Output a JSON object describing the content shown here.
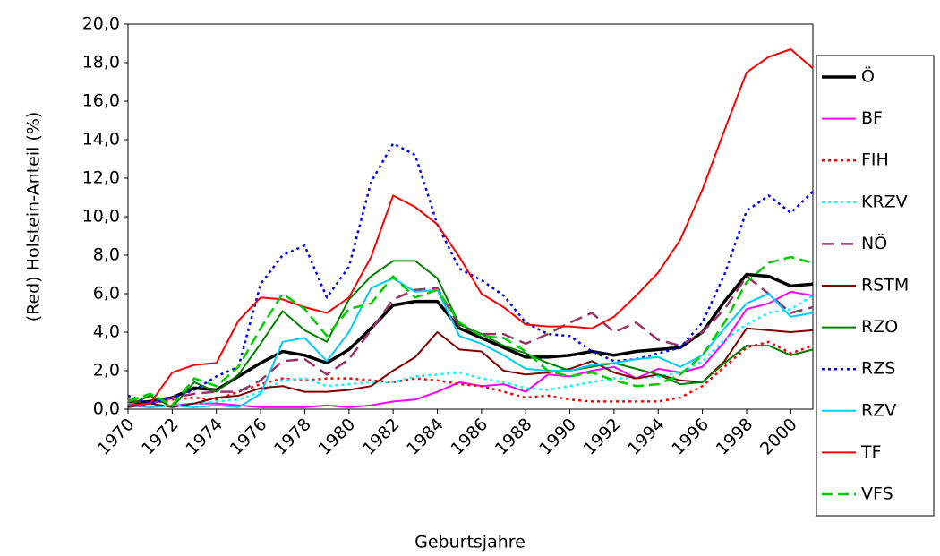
{
  "chart_data": {
    "type": "line",
    "y_label": "(Red) Holstein-Anteil (%)",
    "x_label": "Geburtsjahre",
    "x": [
      1970,
      1971,
      1972,
      1973,
      1974,
      1975,
      1976,
      1977,
      1978,
      1979,
      1980,
      1981,
      1982,
      1983,
      1984,
      1985,
      1986,
      1987,
      1988,
      1989,
      1990,
      1991,
      1992,
      1993,
      1994,
      1995,
      1996,
      1997,
      1998,
      1999,
      2000,
      2001
    ],
    "xlim": [
      1970,
      2001
    ],
    "xticks": [
      1970,
      1972,
      1974,
      1976,
      1978,
      1980,
      1982,
      1984,
      1986,
      1988,
      1990,
      1992,
      1994,
      1996,
      1998,
      2000
    ],
    "ylim": [
      0,
      20
    ],
    "yticks": [
      {
        "value": 0,
        "label": "0,0"
      },
      {
        "value": 2,
        "label": "2,0"
      },
      {
        "value": 4,
        "label": "4,0"
      },
      {
        "value": 6,
        "label": "6,0"
      },
      {
        "value": 8,
        "label": "8,0"
      },
      {
        "value": 10,
        "label": "10,0"
      },
      {
        "value": 12,
        "label": "12,0"
      },
      {
        "value": 14,
        "label": "14,0"
      },
      {
        "value": 16,
        "label": "16,0"
      },
      {
        "value": 18,
        "label": "18,0"
      },
      {
        "value": 20,
        "label": "20,0"
      }
    ],
    "legend": "right",
    "series": [
      {
        "name": "Ö",
        "color": "#000000",
        "style": "thick",
        "values": [
          0.3,
          0.4,
          0.6,
          1.1,
          1.0,
          1.7,
          2.4,
          3.0,
          2.8,
          2.4,
          3.1,
          4.2,
          5.4,
          5.6,
          5.6,
          4.2,
          3.7,
          3.2,
          2.7,
          2.7,
          2.8,
          3.0,
          2.8,
          3.0,
          3.1,
          3.2,
          4.0,
          5.6,
          7.0,
          6.9,
          6.4,
          6.5
        ]
      },
      {
        "name": "BF",
        "color": "#ff00ff",
        "style": "solid",
        "values": [
          0.2,
          0.1,
          0.2,
          0.3,
          0.3,
          0.2,
          0.1,
          0.1,
          0.1,
          0.2,
          0.1,
          0.2,
          0.4,
          0.5,
          0.9,
          1.4,
          1.2,
          1.3,
          0.9,
          1.8,
          1.7,
          2.0,
          2.2,
          1.6,
          2.1,
          1.9,
          2.2,
          3.5,
          5.2,
          5.5,
          6.1,
          5.9
        ]
      },
      {
        "name": "FIH",
        "color": "#ff0000",
        "style": "dotted",
        "values": [
          0.2,
          0.3,
          0.5,
          0.6,
          0.5,
          0.9,
          1.3,
          1.6,
          1.5,
          1.6,
          1.6,
          1.5,
          1.4,
          1.6,
          1.5,
          1.3,
          1.2,
          0.9,
          0.6,
          0.7,
          0.5,
          0.4,
          0.4,
          0.4,
          0.4,
          0.6,
          1.2,
          2.2,
          3.2,
          3.5,
          2.9,
          3.3
        ]
      },
      {
        "name": "KRZV",
        "color": "#00ffff",
        "style": "dotted",
        "values": [
          0.2,
          0.1,
          0.2,
          0.3,
          0.4,
          0.5,
          0.9,
          1.5,
          1.6,
          1.2,
          1.3,
          1.4,
          1.4,
          1.7,
          1.8,
          1.9,
          1.6,
          1.4,
          1.1,
          1.0,
          1.2,
          1.4,
          1.6,
          1.6,
          1.7,
          1.9,
          2.5,
          3.6,
          4.4,
          5.0,
          5.2,
          5.9
        ]
      },
      {
        "name": "NÖ",
        "color": "#993366",
        "style": "longdash",
        "values": [
          0.5,
          0.3,
          0.6,
          0.8,
          0.9,
          0.9,
          1.5,
          2.5,
          2.6,
          1.8,
          2.6,
          4.1,
          5.7,
          6.2,
          6.3,
          4.3,
          3.9,
          3.9,
          3.4,
          3.9,
          4.5,
          5.0,
          4.0,
          4.5,
          3.6,
          3.3,
          4.0,
          5.2,
          6.9,
          6.0,
          5.0,
          5.3
        ]
      },
      {
        "name": "RSTM",
        "color": "#800000",
        "style": "solid",
        "values": [
          0.1,
          0.3,
          0.1,
          0.3,
          0.6,
          0.7,
          1.1,
          1.2,
          0.9,
          0.9,
          1.0,
          1.2,
          2.0,
          2.7,
          4.0,
          3.1,
          3.0,
          2.0,
          1.8,
          1.9,
          2.1,
          2.5,
          1.9,
          1.6,
          1.8,
          1.5,
          1.4,
          2.5,
          4.2,
          4.1,
          4.0,
          4.1
        ]
      },
      {
        "name": "RZO",
        "color": "#008000",
        "style": "solid",
        "values": [
          0.2,
          0.7,
          0.1,
          1.4,
          0.9,
          1.8,
          3.4,
          5.1,
          4.1,
          3.5,
          5.7,
          6.9,
          7.7,
          7.7,
          6.8,
          4.4,
          3.9,
          3.3,
          2.9,
          2.4,
          2.0,
          2.2,
          2.4,
          2.1,
          1.8,
          1.3,
          1.4,
          2.4,
          3.3,
          3.3,
          2.8,
          3.1
        ]
      },
      {
        "name": "RZS",
        "color": "#0000ff",
        "style": "dotted",
        "values": [
          0.7,
          0.3,
          0.6,
          1.0,
          1.7,
          2.2,
          6.5,
          8.0,
          8.5,
          5.8,
          7.4,
          11.8,
          13.8,
          13.2,
          9.6,
          7.3,
          6.7,
          5.9,
          4.5,
          3.9,
          3.8,
          3.0,
          2.5,
          2.6,
          2.9,
          3.2,
          4.5,
          7.0,
          10.3,
          11.1,
          10.2,
          11.3
        ]
      },
      {
        "name": "RZV",
        "color": "#00ccff",
        "style": "solid",
        "values": [
          0.3,
          0.1,
          0.2,
          0.1,
          0.2,
          0.1,
          0.8,
          3.5,
          3.7,
          2.5,
          4.0,
          6.3,
          6.8,
          6.1,
          6.2,
          3.8,
          3.4,
          2.8,
          2.1,
          2.0,
          2.0,
          2.3,
          2.4,
          2.6,
          2.7,
          2.2,
          2.8,
          4.2,
          5.5,
          6.0,
          4.8,
          5.0
        ]
      },
      {
        "name": "TF",
        "color": "#ff0000",
        "style": "solid",
        "values": [
          0.2,
          0.3,
          1.9,
          2.3,
          2.4,
          4.6,
          5.8,
          5.7,
          5.3,
          5.0,
          5.8,
          7.9,
          11.1,
          10.5,
          9.6,
          7.9,
          6.0,
          5.3,
          4.4,
          4.3,
          4.3,
          4.2,
          4.8,
          5.9,
          7.1,
          8.8,
          11.4,
          14.5,
          17.5,
          18.3,
          18.7,
          17.7
        ]
      },
      {
        "name": "VFS",
        "color": "#00cc00",
        "style": "dashed",
        "values": [
          0.4,
          0.8,
          0.2,
          1.6,
          1.2,
          2.2,
          4.2,
          6.0,
          5.2,
          3.8,
          5.2,
          5.5,
          6.9,
          5.8,
          6.2,
          4.5,
          3.8,
          3.7,
          3.0,
          2.0,
          1.7,
          1.9,
          1.5,
          1.2,
          1.3,
          1.8,
          2.8,
          4.5,
          6.6,
          7.6,
          7.9,
          7.6
        ]
      }
    ]
  }
}
